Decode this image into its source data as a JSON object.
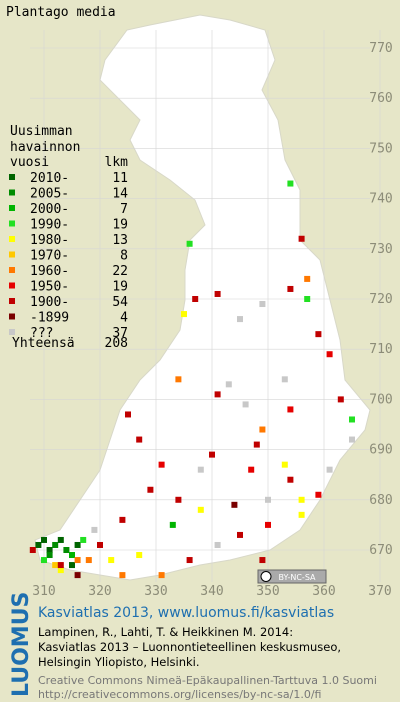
{
  "title": "Plantago media",
  "legend": {
    "heading": [
      "Uusimman",
      "havainnon"
    ],
    "col_year": "vuosi",
    "col_count": "lkm",
    "rows": [
      {
        "label": "2010-",
        "count": 11,
        "color": "#006400"
      },
      {
        "label": "2005-",
        "count": 14,
        "color": "#008c00"
      },
      {
        "label": "2000-",
        "count": 7,
        "color": "#00b400"
      },
      {
        "label": "1990-",
        "count": 19,
        "color": "#22e022"
      },
      {
        "label": "1980-",
        "count": 13,
        "color": "#ffff00"
      },
      {
        "label": "1970-",
        "count": 8,
        "color": "#ffc800"
      },
      {
        "label": "1960-",
        "count": 22,
        "color": "#ff7800"
      },
      {
        "label": "1950-",
        "count": 19,
        "color": "#e60000"
      },
      {
        "label": "1900-",
        "count": 54,
        "color": "#c00000"
      },
      {
        "label": "-1899",
        "count": 4,
        "color": "#7a0000"
      },
      {
        "label": "???",
        "count": 37,
        "color": "#c8c8c8"
      }
    ],
    "total_label": "Yhteensä",
    "total": 208
  },
  "grid": {
    "xticks": [
      310,
      320,
      330,
      340,
      350,
      360,
      370
    ],
    "yticks": [
      670,
      680,
      690,
      700,
      710,
      720,
      730,
      740,
      750,
      760,
      770
    ]
  },
  "points": [
    [
      309,
      671,
      0
    ],
    [
      310,
      672,
      0
    ],
    [
      311,
      670,
      0
    ],
    [
      312,
      671,
      1
    ],
    [
      313,
      672,
      0
    ],
    [
      311,
      669,
      1
    ],
    [
      314,
      670,
      1
    ],
    [
      315,
      669,
      2
    ],
    [
      316,
      671,
      0
    ],
    [
      310,
      668,
      3
    ],
    [
      312,
      667,
      5
    ],
    [
      308,
      670,
      8
    ],
    [
      317,
      672,
      3
    ],
    [
      318,
      668,
      6
    ],
    [
      313,
      666,
      4
    ],
    [
      315,
      667,
      0
    ],
    [
      316,
      665,
      9
    ],
    [
      354,
      743,
      3
    ],
    [
      336,
      731,
      3
    ],
    [
      356,
      732,
      8
    ],
    [
      341,
      721,
      8
    ],
    [
      357,
      720,
      3
    ],
    [
      335,
      717,
      4
    ],
    [
      349,
      719,
      10
    ],
    [
      361,
      709,
      7
    ],
    [
      365,
      696,
      3
    ],
    [
      325,
      697,
      8
    ],
    [
      327,
      692,
      8
    ],
    [
      354,
      698,
      7
    ],
    [
      346,
      699,
      10
    ],
    [
      349,
      694,
      6
    ],
    [
      340,
      689,
      8
    ],
    [
      347,
      686,
      7
    ],
    [
      354,
      684,
      8
    ],
    [
      329,
      682,
      8
    ],
    [
      334,
      680,
      8
    ],
    [
      338,
      678,
      4
    ],
    [
      344,
      679,
      9
    ],
    [
      350,
      675,
      7
    ],
    [
      356,
      677,
      4
    ],
    [
      359,
      681,
      7
    ],
    [
      353,
      687,
      4
    ],
    [
      361,
      686,
      10
    ],
    [
      320,
      671,
      8
    ],
    [
      322,
      668,
      4
    ],
    [
      324,
      665,
      6
    ],
    [
      331,
      665,
      6
    ],
    [
      336,
      668,
      8
    ],
    [
      341,
      671,
      10
    ],
    [
      345,
      673,
      8
    ],
    [
      327,
      669,
      4
    ],
    [
      319,
      674,
      10
    ],
    [
      324,
      676,
      8
    ],
    [
      333,
      675,
      2
    ],
    [
      338,
      686,
      10
    ],
    [
      331,
      687,
      7
    ],
    [
      343,
      703,
      10
    ],
    [
      353,
      704,
      10
    ],
    [
      348,
      691,
      8
    ],
    [
      341,
      701,
      8
    ],
    [
      334,
      704,
      6
    ],
    [
      359,
      713,
      8
    ],
    [
      354,
      722,
      8
    ],
    [
      357,
      724,
      6
    ],
    [
      345,
      716,
      10
    ],
    [
      337,
      720,
      8
    ],
    [
      365,
      692,
      10
    ],
    [
      363,
      700,
      8
    ],
    [
      356,
      680,
      4
    ],
    [
      350,
      680,
      10
    ],
    [
      316,
      668,
      6
    ],
    [
      313,
      667,
      8
    ],
    [
      349,
      668,
      8
    ]
  ],
  "license_badge": "BY-NC-SA",
  "footer": {
    "logo": "LUOMUS",
    "headline": "Kasviatlas 2013, www.luomus.fi/kasviatlas",
    "citation": [
      "Lampinen, R., Lahti, T. & Heikkinen M. 2014:",
      "Kasviatlas 2013 – Luonnontieteellinen keskusmuseo,",
      "Helsingin Yliopisto, Helsinki."
    ],
    "license": [
      "Creative Commons Nimeä-Epäkaupallinen-Tarttuva 1.0 Suomi",
      "http://creativecommons.org/licenses/by-nc-sa/1.0/fi"
    ]
  }
}
